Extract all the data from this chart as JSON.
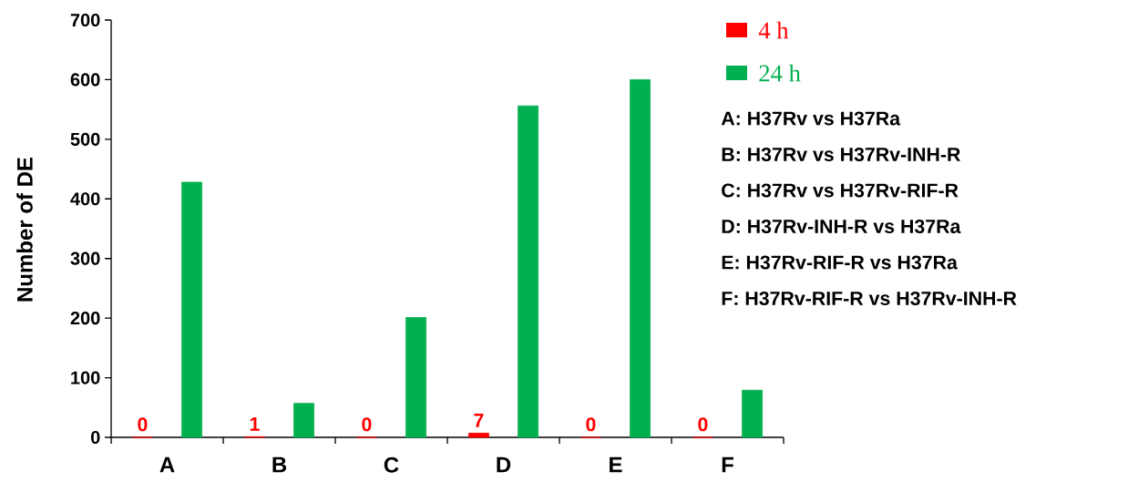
{
  "chart_data": {
    "type": "bar",
    "ylabel": "Number of DE",
    "categories": [
      "A",
      "B",
      "C",
      "D",
      "E",
      "F"
    ],
    "series": [
      {
        "name": "4 h",
        "color": "#ff0000",
        "values": [
          0,
          1,
          0,
          7,
          0,
          0
        ],
        "value_labels": [
          "0",
          "1",
          "0",
          "7",
          "0",
          "0"
        ]
      },
      {
        "name": "24 h",
        "color": "#00b050",
        "values": [
          428,
          57,
          201,
          556,
          600,
          79
        ]
      }
    ],
    "ylim": [
      0,
      700
    ],
    "yticks": [
      0,
      100,
      200,
      300,
      400,
      500,
      600,
      700
    ],
    "grid": false,
    "legend": "right",
    "annotations": [
      "A: H37Rv vs H37Ra",
      "B: H37Rv vs H37Rv-INH-R",
      "C: H37Rv vs H37Rv-RIF-R",
      "D: H37Rv-INH-R vs H37Ra",
      "E: H37Rv-RIF-R vs H37Ra",
      "F: H37Rv-RIF-R vs H37Rv-INH-R"
    ]
  }
}
